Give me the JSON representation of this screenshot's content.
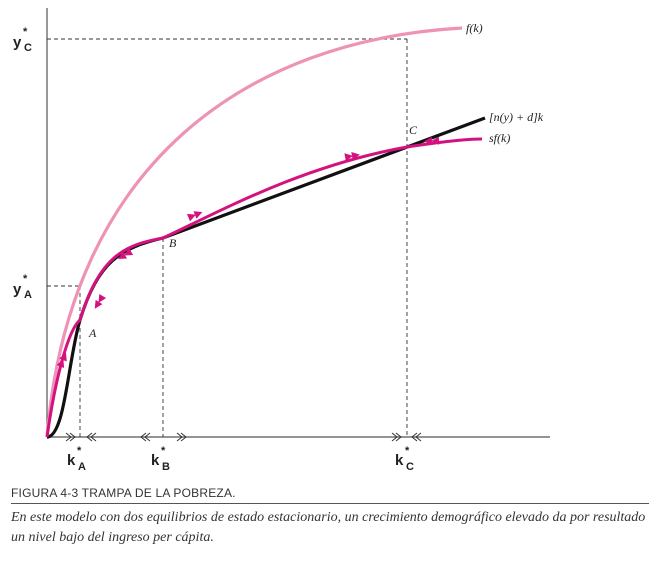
{
  "labels": {
    "y_c": "y",
    "y_c_sub": "C",
    "y_a": "y",
    "y_a_sub": "A",
    "k_a": "k",
    "k_a_sub": "A",
    "k_b": "k",
    "k_b_sub": "B",
    "k_c": "k",
    "k_c_sub": "C",
    "star": "*",
    "fk": "f(k)",
    "break_even": "[n(y) + d]k",
    "sfk": "sf(k)",
    "point_a": "A",
    "point_b": "B",
    "point_c": "C"
  },
  "caption": {
    "title": "FIGURA 4-3    TRAMPA DE LA POBREZA.",
    "text": "En este modelo con dos equilibrios de estado estacionario, un crecimiento demográfico elevado da por resultado un nivel bajo del ingreso per cápita."
  },
  "colors": {
    "axis": "#555555",
    "fk": "#ee92b6",
    "break_even": "#111111",
    "sfk": "#d4127f",
    "dashed": "#333333"
  }
}
